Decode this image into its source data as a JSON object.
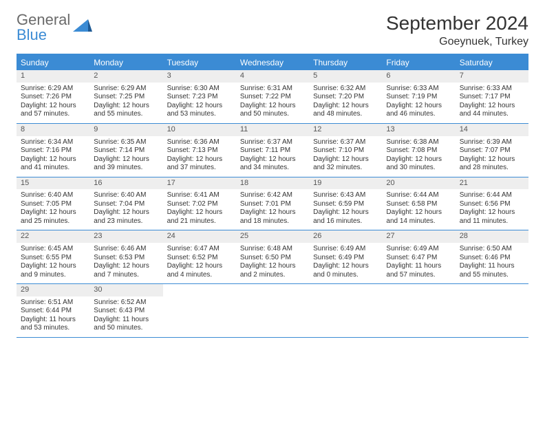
{
  "brand": {
    "part1": "General",
    "part2": "Blue"
  },
  "title": "September 2024",
  "location": "Goeynuek, Turkey",
  "colors": {
    "accent": "#3b8bd4",
    "header_gray": "#6a6a6a",
    "cell_header_bg": "#eeeeee",
    "text": "#333333",
    "background": "#ffffff"
  },
  "day_headers": [
    "Sunday",
    "Monday",
    "Tuesday",
    "Wednesday",
    "Thursday",
    "Friday",
    "Saturday"
  ],
  "days": [
    {
      "n": "1",
      "sunrise": "Sunrise: 6:29 AM",
      "sunset": "Sunset: 7:26 PM",
      "daylight": "Daylight: 12 hours and 57 minutes."
    },
    {
      "n": "2",
      "sunrise": "Sunrise: 6:29 AM",
      "sunset": "Sunset: 7:25 PM",
      "daylight": "Daylight: 12 hours and 55 minutes."
    },
    {
      "n": "3",
      "sunrise": "Sunrise: 6:30 AM",
      "sunset": "Sunset: 7:23 PM",
      "daylight": "Daylight: 12 hours and 53 minutes."
    },
    {
      "n": "4",
      "sunrise": "Sunrise: 6:31 AM",
      "sunset": "Sunset: 7:22 PM",
      "daylight": "Daylight: 12 hours and 50 minutes."
    },
    {
      "n": "5",
      "sunrise": "Sunrise: 6:32 AM",
      "sunset": "Sunset: 7:20 PM",
      "daylight": "Daylight: 12 hours and 48 minutes."
    },
    {
      "n": "6",
      "sunrise": "Sunrise: 6:33 AM",
      "sunset": "Sunset: 7:19 PM",
      "daylight": "Daylight: 12 hours and 46 minutes."
    },
    {
      "n": "7",
      "sunrise": "Sunrise: 6:33 AM",
      "sunset": "Sunset: 7:17 PM",
      "daylight": "Daylight: 12 hours and 44 minutes."
    },
    {
      "n": "8",
      "sunrise": "Sunrise: 6:34 AM",
      "sunset": "Sunset: 7:16 PM",
      "daylight": "Daylight: 12 hours and 41 minutes."
    },
    {
      "n": "9",
      "sunrise": "Sunrise: 6:35 AM",
      "sunset": "Sunset: 7:14 PM",
      "daylight": "Daylight: 12 hours and 39 minutes."
    },
    {
      "n": "10",
      "sunrise": "Sunrise: 6:36 AM",
      "sunset": "Sunset: 7:13 PM",
      "daylight": "Daylight: 12 hours and 37 minutes."
    },
    {
      "n": "11",
      "sunrise": "Sunrise: 6:37 AM",
      "sunset": "Sunset: 7:11 PM",
      "daylight": "Daylight: 12 hours and 34 minutes."
    },
    {
      "n": "12",
      "sunrise": "Sunrise: 6:37 AM",
      "sunset": "Sunset: 7:10 PM",
      "daylight": "Daylight: 12 hours and 32 minutes."
    },
    {
      "n": "13",
      "sunrise": "Sunrise: 6:38 AM",
      "sunset": "Sunset: 7:08 PM",
      "daylight": "Daylight: 12 hours and 30 minutes."
    },
    {
      "n": "14",
      "sunrise": "Sunrise: 6:39 AM",
      "sunset": "Sunset: 7:07 PM",
      "daylight": "Daylight: 12 hours and 28 minutes."
    },
    {
      "n": "15",
      "sunrise": "Sunrise: 6:40 AM",
      "sunset": "Sunset: 7:05 PM",
      "daylight": "Daylight: 12 hours and 25 minutes."
    },
    {
      "n": "16",
      "sunrise": "Sunrise: 6:40 AM",
      "sunset": "Sunset: 7:04 PM",
      "daylight": "Daylight: 12 hours and 23 minutes."
    },
    {
      "n": "17",
      "sunrise": "Sunrise: 6:41 AM",
      "sunset": "Sunset: 7:02 PM",
      "daylight": "Daylight: 12 hours and 21 minutes."
    },
    {
      "n": "18",
      "sunrise": "Sunrise: 6:42 AM",
      "sunset": "Sunset: 7:01 PM",
      "daylight": "Daylight: 12 hours and 18 minutes."
    },
    {
      "n": "19",
      "sunrise": "Sunrise: 6:43 AM",
      "sunset": "Sunset: 6:59 PM",
      "daylight": "Daylight: 12 hours and 16 minutes."
    },
    {
      "n": "20",
      "sunrise": "Sunrise: 6:44 AM",
      "sunset": "Sunset: 6:58 PM",
      "daylight": "Daylight: 12 hours and 14 minutes."
    },
    {
      "n": "21",
      "sunrise": "Sunrise: 6:44 AM",
      "sunset": "Sunset: 6:56 PM",
      "daylight": "Daylight: 12 hours and 11 minutes."
    },
    {
      "n": "22",
      "sunrise": "Sunrise: 6:45 AM",
      "sunset": "Sunset: 6:55 PM",
      "daylight": "Daylight: 12 hours and 9 minutes."
    },
    {
      "n": "23",
      "sunrise": "Sunrise: 6:46 AM",
      "sunset": "Sunset: 6:53 PM",
      "daylight": "Daylight: 12 hours and 7 minutes."
    },
    {
      "n": "24",
      "sunrise": "Sunrise: 6:47 AM",
      "sunset": "Sunset: 6:52 PM",
      "daylight": "Daylight: 12 hours and 4 minutes."
    },
    {
      "n": "25",
      "sunrise": "Sunrise: 6:48 AM",
      "sunset": "Sunset: 6:50 PM",
      "daylight": "Daylight: 12 hours and 2 minutes."
    },
    {
      "n": "26",
      "sunrise": "Sunrise: 6:49 AM",
      "sunset": "Sunset: 6:49 PM",
      "daylight": "Daylight: 12 hours and 0 minutes."
    },
    {
      "n": "27",
      "sunrise": "Sunrise: 6:49 AM",
      "sunset": "Sunset: 6:47 PM",
      "daylight": "Daylight: 11 hours and 57 minutes."
    },
    {
      "n": "28",
      "sunrise": "Sunrise: 6:50 AM",
      "sunset": "Sunset: 6:46 PM",
      "daylight": "Daylight: 11 hours and 55 minutes."
    },
    {
      "n": "29",
      "sunrise": "Sunrise: 6:51 AM",
      "sunset": "Sunset: 6:44 PM",
      "daylight": "Daylight: 11 hours and 53 minutes."
    },
    {
      "n": "30",
      "sunrise": "Sunrise: 6:52 AM",
      "sunset": "Sunset: 6:43 PM",
      "daylight": "Daylight: 11 hours and 50 minutes."
    }
  ],
  "grid": {
    "start_offset": 0,
    "total_cells": 35
  }
}
